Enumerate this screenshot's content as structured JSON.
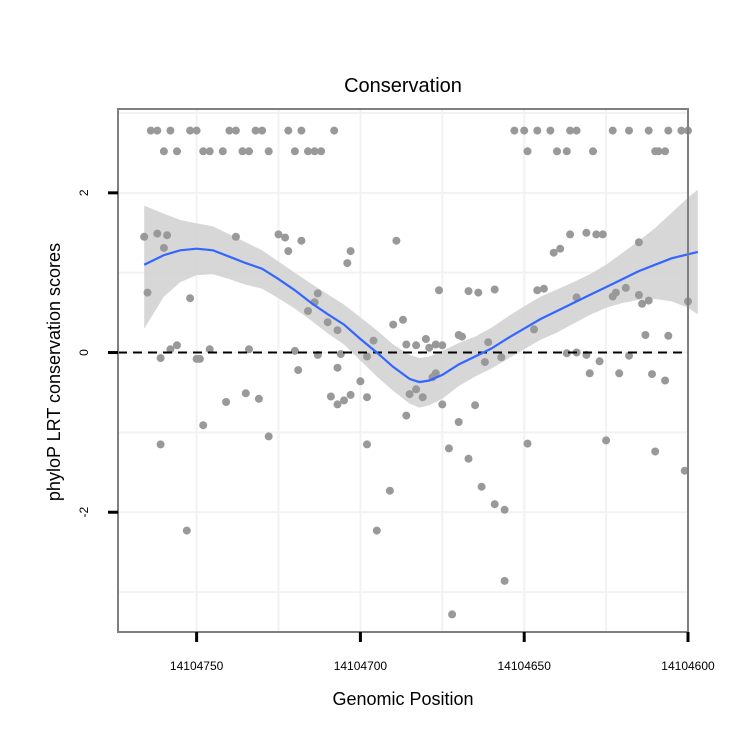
{
  "chart_data": {
    "type": "scatter",
    "title": "Conservation",
    "xlabel": "Genomic Position",
    "ylabel": "phyloP LRT conservation scores",
    "x_reversed": true,
    "xlim": [
      14104774,
      14104600
    ],
    "ylim": [
      -3.5,
      3.05
    ],
    "x_ticks": [
      {
        "value": 14104750,
        "label": "14104750"
      },
      {
        "value": 14104700,
        "label": "14104700"
      },
      {
        "value": 14104650,
        "label": "14104650"
      },
      {
        "value": 14104600,
        "label": "14104600"
      }
    ],
    "y_ticks": [
      {
        "value": 2,
        "label": "2"
      },
      {
        "value": 0,
        "label": "0"
      },
      {
        "value": -2,
        "label": "-2"
      }
    ],
    "reference_line": {
      "y": 0,
      "style": "dashed",
      "color": "#000000"
    },
    "colors": {
      "points": "#999999",
      "smooth_line": "#3366ff",
      "ribbon": "#d3d3d3",
      "gridline": "#f2f2f2",
      "panel_border": "#7f7f7f"
    },
    "points": [
      [
        14104764,
        2.78
      ],
      [
        14104762,
        2.78
      ],
      [
        14104758,
        2.78
      ],
      [
        14104752,
        2.78
      ],
      [
        14104750,
        2.78
      ],
      [
        14104740,
        2.78
      ],
      [
        14104738,
        2.78
      ],
      [
        14104732,
        2.78
      ],
      [
        14104730,
        2.78
      ],
      [
        14104722,
        2.78
      ],
      [
        14104718,
        2.78
      ],
      [
        14104708,
        2.78
      ],
      [
        14104760,
        2.52
      ],
      [
        14104756,
        2.52
      ],
      [
        14104748,
        2.52
      ],
      [
        14104746,
        2.52
      ],
      [
        14104742,
        2.52
      ],
      [
        14104736,
        2.52
      ],
      [
        14104734,
        2.52
      ],
      [
        14104728,
        2.52
      ],
      [
        14104720,
        2.52
      ],
      [
        14104716,
        2.52
      ],
      [
        14104714,
        2.52
      ],
      [
        14104712,
        2.52
      ],
      [
        14104653,
        2.78
      ],
      [
        14104650,
        2.78
      ],
      [
        14104646,
        2.78
      ],
      [
        14104642,
        2.78
      ],
      [
        14104636,
        2.78
      ],
      [
        14104634,
        2.78
      ],
      [
        14104623,
        2.78
      ],
      [
        14104618,
        2.78
      ],
      [
        14104612,
        2.78
      ],
      [
        14104606,
        2.78
      ],
      [
        14104602,
        2.78
      ],
      [
        14104600,
        2.78
      ],
      [
        14104649,
        2.52
      ],
      [
        14104640,
        2.52
      ],
      [
        14104637,
        2.52
      ],
      [
        14104629,
        2.52
      ],
      [
        14104610,
        2.52
      ],
      [
        14104609,
        2.52
      ],
      [
        14104607,
        2.52
      ],
      [
        14104766,
        1.45
      ],
      [
        14104762,
        1.49
      ],
      [
        14104759,
        1.47
      ],
      [
        14104738,
        1.45
      ],
      [
        14104725,
        1.48
      ],
      [
        14104723,
        1.44
      ],
      [
        14104718,
        1.4
      ],
      [
        14104722,
        1.27
      ],
      [
        14104760,
        1.31
      ],
      [
        14104703,
        1.27
      ],
      [
        14104704,
        1.12
      ],
      [
        14104765,
        0.75
      ],
      [
        14104752,
        0.68
      ],
      [
        14104713,
        0.74
      ],
      [
        14104714,
        0.63
      ],
      [
        14104716,
        0.52
      ],
      [
        14104710,
        0.38
      ],
      [
        14104707,
        0.28
      ],
      [
        14104720,
        0.02
      ],
      [
        14104713,
        -0.03
      ],
      [
        14104719,
        -0.22
      ],
      [
        14104706,
        -0.02
      ],
      [
        14104707,
        -0.19
      ],
      [
        14104756,
        0.09
      ],
      [
        14104758,
        0.04
      ],
      [
        14104750,
        -0.08
      ],
      [
        14104746,
        0.04
      ],
      [
        14104734,
        0.04
      ],
      [
        14104749,
        -0.08
      ],
      [
        14104761,
        -0.07
      ],
      [
        14104735,
        -0.51
      ],
      [
        14104731,
        -0.58
      ],
      [
        14104741,
        -0.62
      ],
      [
        14104761,
        -1.15
      ],
      [
        14104748,
        -0.91
      ],
      [
        14104728,
        -1.05
      ],
      [
        14104753,
        -2.23
      ],
      [
        14104709,
        -0.55
      ],
      [
        14104705,
        -0.6
      ],
      [
        14104707,
        -0.65
      ],
      [
        14104703,
        -0.53
      ],
      [
        14104700,
        -0.36
      ],
      [
        14104696,
        0.15
      ],
      [
        14104690,
        0.35
      ],
      [
        14104687,
        0.41
      ],
      [
        14104689,
        1.4
      ],
      [
        14104698,
        -0.05
      ],
      [
        14104698,
        -0.56
      ],
      [
        14104698,
        -1.15
      ],
      [
        14104695,
        -2.23
      ],
      [
        14104691,
        -1.73
      ],
      [
        14104685,
        -0.52
      ],
      [
        14104686,
        0.1
      ],
      [
        14104683,
        0.09
      ],
      [
        14104686,
        -0.79
      ],
      [
        14104683,
        -0.46
      ],
      [
        14104681,
        -0.56
      ],
      [
        14104680,
        0.17
      ],
      [
        14104675,
        -0.65
      ],
      [
        14104675,
        0.09
      ],
      [
        14104678,
        -0.31
      ],
      [
        14104677,
        -0.26
      ],
      [
        14104677,
        0.1
      ],
      [
        14104679,
        0.06
      ],
      [
        14104676,
        0.78
      ],
      [
        14104673,
        -1.2
      ],
      [
        14104670,
        0.22
      ],
      [
        14104669,
        0.2
      ],
      [
        14104670,
        -0.87
      ],
      [
        14104667,
        -1.33
      ],
      [
        14104665,
        -0.66
      ],
      [
        14104667,
        0.77
      ],
      [
        14104662,
        -0.12
      ],
      [
        14104663,
        -1.68
      ],
      [
        14104661,
        0.13
      ],
      [
        14104659,
        0.79
      ],
      [
        14104659,
        -1.9
      ],
      [
        14104657,
        -0.06
      ],
      [
        14104656,
        -1.97
      ],
      [
        14104656,
        -2.86
      ],
      [
        14104672,
        -3.28
      ],
      [
        14104664,
        0.75
      ],
      [
        14104647,
        0.29
      ],
      [
        14104646,
        0.78
      ],
      [
        14104644,
        0.8
      ],
      [
        14104641,
        1.25
      ],
      [
        14104639,
        1.3
      ],
      [
        14104636,
        1.48
      ],
      [
        14104631,
        1.5
      ],
      [
        14104628,
        1.48
      ],
      [
        14104626,
        1.48
      ],
      [
        14104637,
        -0.01
      ],
      [
        14104634,
        0.0
      ],
      [
        14104631,
        -0.03
      ],
      [
        14104627,
        -0.11
      ],
      [
        14104634,
        0.69
      ],
      [
        14104630,
        -0.26
      ],
      [
        14104623,
        0.7
      ],
      [
        14104622,
        0.75
      ],
      [
        14104619,
        0.81
      ],
      [
        14104621,
        -0.26
      ],
      [
        14104618,
        -0.04
      ],
      [
        14104615,
        0.72
      ],
      [
        14104614,
        0.61
      ],
      [
        14104612,
        0.65
      ],
      [
        14104613,
        0.22
      ],
      [
        14104615,
        1.38
      ],
      [
        14104625,
        -1.1
      ],
      [
        14104606,
        0.21
      ],
      [
        14104607,
        -0.35
      ],
      [
        14104611,
        -0.27
      ],
      [
        14104610,
        -1.24
      ],
      [
        14104600,
        0.64
      ],
      [
        14104601,
        -1.48
      ],
      [
        14104649,
        -1.14
      ]
    ],
    "smooth": [
      [
        14104766,
        1.1
      ],
      [
        14104760,
        1.22
      ],
      [
        14104755,
        1.28
      ],
      [
        14104750,
        1.3
      ],
      [
        14104745,
        1.28
      ],
      [
        14104740,
        1.2
      ],
      [
        14104735,
        1.12
      ],
      [
        14104730,
        1.05
      ],
      [
        14104725,
        0.92
      ],
      [
        14104720,
        0.78
      ],
      [
        14104715,
        0.62
      ],
      [
        14104710,
        0.48
      ],
      [
        14104705,
        0.35
      ],
      [
        14104700,
        0.17
      ],
      [
        14104695,
        0.0
      ],
      [
        14104690,
        -0.18
      ],
      [
        14104685,
        -0.33
      ],
      [
        14104682,
        -0.37
      ],
      [
        14104679,
        -0.35
      ],
      [
        14104675,
        -0.28
      ],
      [
        14104670,
        -0.15
      ],
      [
        14104665,
        -0.05
      ],
      [
        14104660,
        0.05
      ],
      [
        14104655,
        0.18
      ],
      [
        14104650,
        0.3
      ],
      [
        14104645,
        0.42
      ],
      [
        14104640,
        0.52
      ],
      [
        14104635,
        0.62
      ],
      [
        14104630,
        0.72
      ],
      [
        14104625,
        0.82
      ],
      [
        14104620,
        0.92
      ],
      [
        14104615,
        1.02
      ],
      [
        14104610,
        1.1
      ],
      [
        14104605,
        1.18
      ],
      [
        14104600,
        1.23
      ],
      [
        14104597,
        1.26
      ]
    ],
    "ribbon_upper": [
      [
        14104766,
        1.84
      ],
      [
        14104760,
        1.74
      ],
      [
        14104755,
        1.66
      ],
      [
        14104750,
        1.62
      ],
      [
        14104745,
        1.58
      ],
      [
        14104740,
        1.48
      ],
      [
        14104735,
        1.38
      ],
      [
        14104730,
        1.28
      ],
      [
        14104725,
        1.14
      ],
      [
        14104720,
        1.0
      ],
      [
        14104715,
        0.86
      ],
      [
        14104710,
        0.73
      ],
      [
        14104705,
        0.6
      ],
      [
        14104700,
        0.44
      ],
      [
        14104695,
        0.28
      ],
      [
        14104690,
        0.1
      ],
      [
        14104685,
        -0.03
      ],
      [
        14104682,
        -0.07
      ],
      [
        14104679,
        -0.05
      ],
      [
        14104675,
        0.02
      ],
      [
        14104670,
        0.12
      ],
      [
        14104665,
        0.2
      ],
      [
        14104660,
        0.31
      ],
      [
        14104655,
        0.45
      ],
      [
        14104650,
        0.58
      ],
      [
        14104645,
        0.7
      ],
      [
        14104640,
        0.79
      ],
      [
        14104635,
        0.88
      ],
      [
        14104630,
        0.98
      ],
      [
        14104625,
        1.1
      ],
      [
        14104620,
        1.25
      ],
      [
        14104615,
        1.4
      ],
      [
        14104610,
        1.56
      ],
      [
        14104605,
        1.75
      ],
      [
        14104600,
        1.94
      ],
      [
        14104597,
        2.04
      ]
    ],
    "ribbon_lower": [
      [
        14104766,
        0.3
      ],
      [
        14104760,
        0.7
      ],
      [
        14104755,
        0.88
      ],
      [
        14104750,
        0.97
      ],
      [
        14104745,
        0.98
      ],
      [
        14104740,
        0.92
      ],
      [
        14104735,
        0.85
      ],
      [
        14104730,
        0.8
      ],
      [
        14104725,
        0.68
      ],
      [
        14104720,
        0.55
      ],
      [
        14104715,
        0.4
      ],
      [
        14104710,
        0.24
      ],
      [
        14104705,
        0.1
      ],
      [
        14104700,
        -0.1
      ],
      [
        14104695,
        -0.3
      ],
      [
        14104690,
        -0.48
      ],
      [
        14104685,
        -0.64
      ],
      [
        14104682,
        -0.69
      ],
      [
        14104679,
        -0.66
      ],
      [
        14104675,
        -0.58
      ],
      [
        14104670,
        -0.42
      ],
      [
        14104665,
        -0.3
      ],
      [
        14104660,
        -0.2
      ],
      [
        14104655,
        -0.08
      ],
      [
        14104650,
        0.04
      ],
      [
        14104645,
        0.16
      ],
      [
        14104640,
        0.25
      ],
      [
        14104635,
        0.36
      ],
      [
        14104630,
        0.47
      ],
      [
        14104625,
        0.56
      ],
      [
        14104620,
        0.62
      ],
      [
        14104615,
        0.66
      ],
      [
        14104610,
        0.67
      ],
      [
        14104605,
        0.64
      ],
      [
        14104600,
        0.56
      ],
      [
        14104597,
        0.48
      ]
    ]
  }
}
